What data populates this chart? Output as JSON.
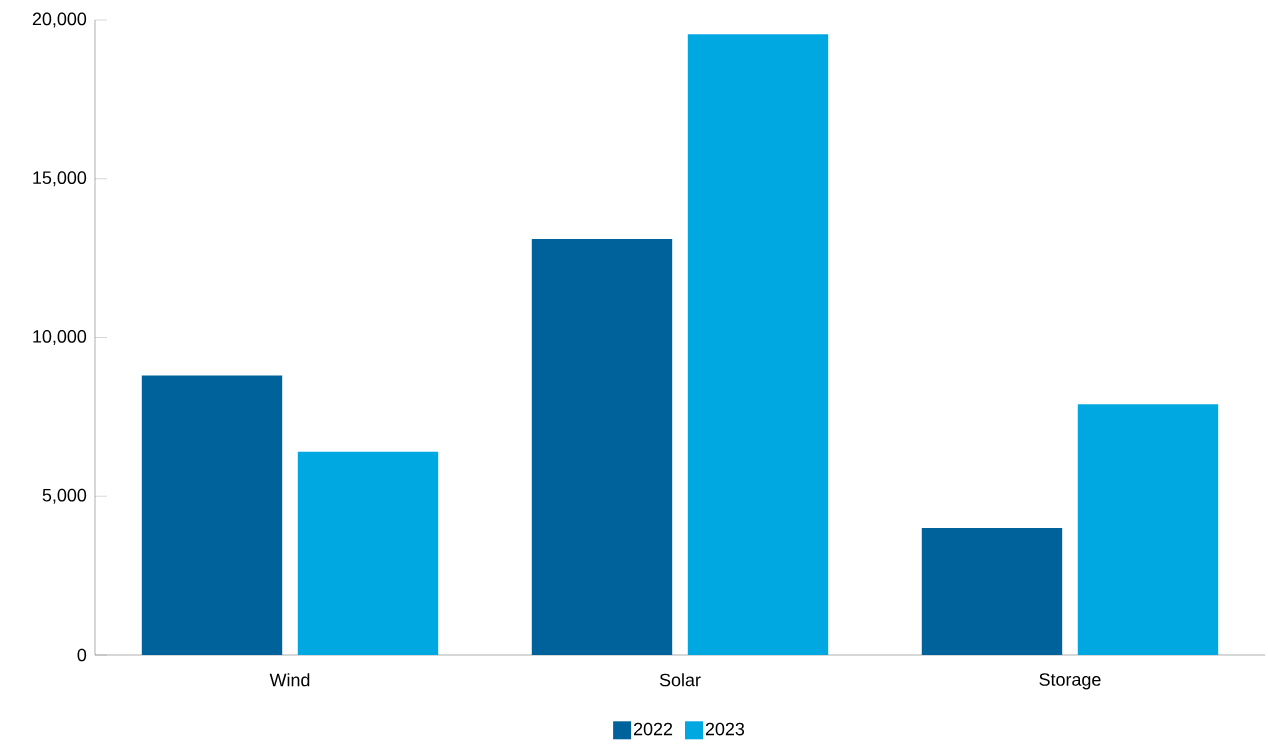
{
  "chart_data": {
    "type": "bar",
    "categories": [
      "Wind",
      "Solar",
      "Storage"
    ],
    "series": [
      {
        "name": "2022",
        "color": "#00629b",
        "values": [
          8800,
          13100,
          4000
        ]
      },
      {
        "name": "2023",
        "color": "#00a8e1",
        "values": [
          6400,
          19550,
          7900
        ]
      }
    ],
    "ylim": [
      0,
      20000
    ],
    "yticks": [
      {
        "value": 0,
        "label": "0"
      },
      {
        "value": 5000,
        "label": "5,000"
      },
      {
        "value": 10000,
        "label": "10,000"
      },
      {
        "value": 15000,
        "label": "15,000"
      },
      {
        "value": 20000,
        "label": "20,000"
      }
    ],
    "grid": false,
    "legend": "bottom"
  }
}
